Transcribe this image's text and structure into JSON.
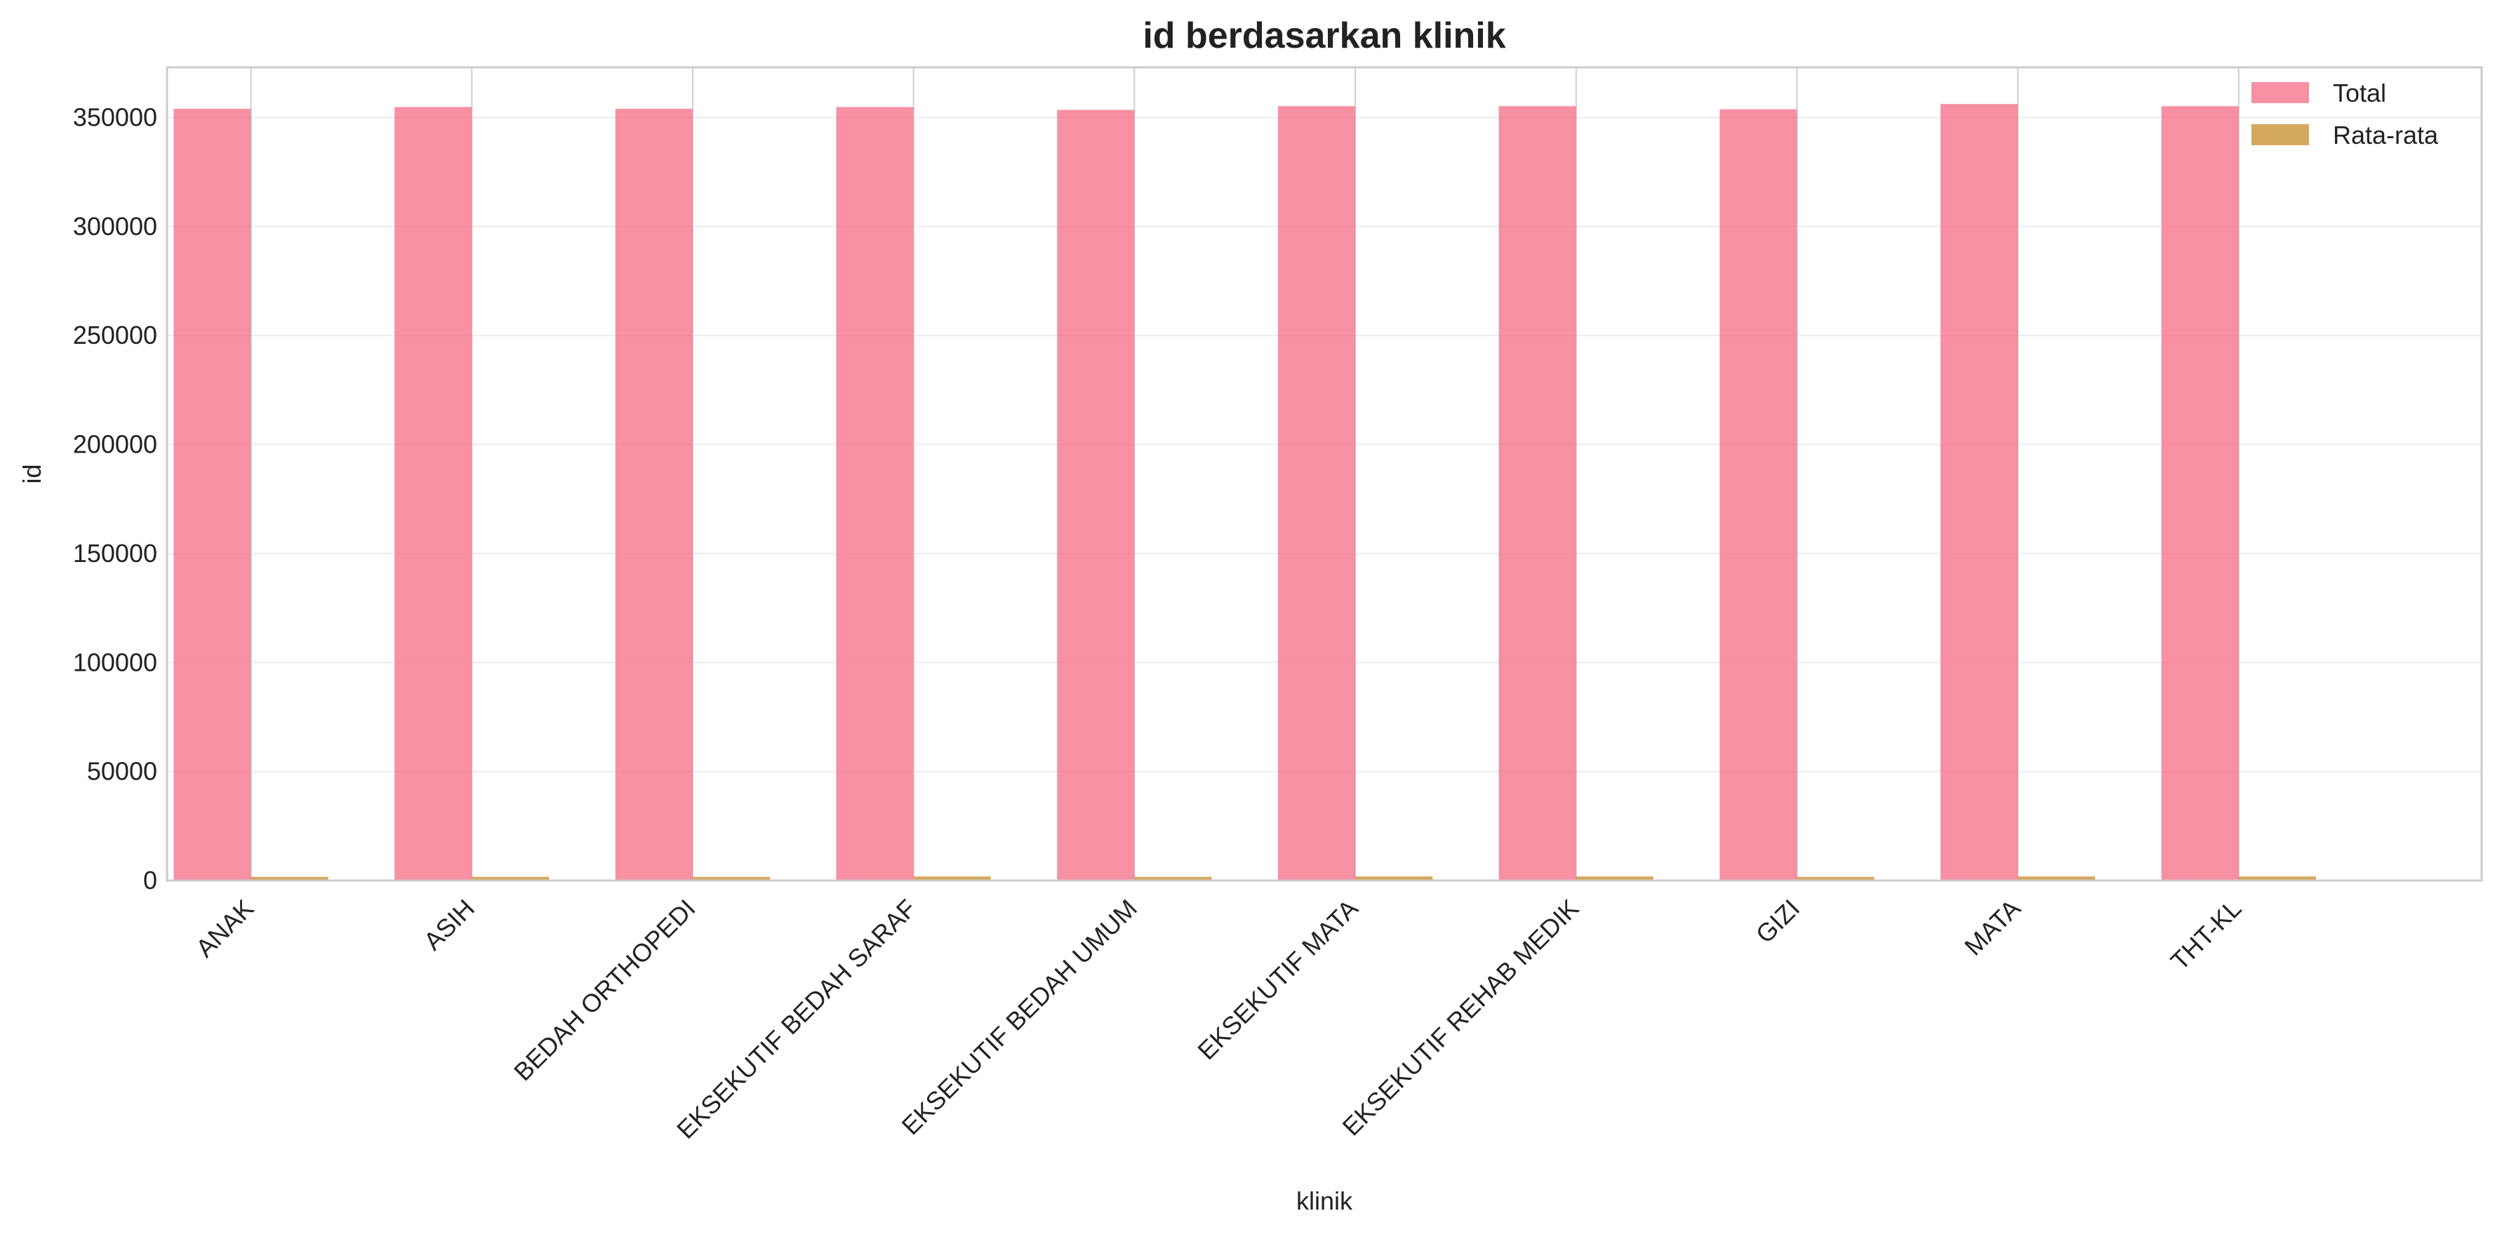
{
  "chart_data": {
    "type": "bar",
    "title": "id berdasarkan klinik",
    "xlabel": "klinik",
    "ylabel": "id",
    "categories": [
      "ANAK",
      "ASIH",
      "BEDAH ORTHOPEDI",
      "EKSEKUTIF BEDAH SARAF",
      "EKSEKUTIF BEDAH UMUM",
      "EKSEKUTIF MATA",
      "EKSEKUTIF REHAB MEDIK",
      "GIZI",
      "MATA",
      "THT-KL"
    ],
    "series": [
      {
        "name": "Total",
        "color": "#f5748c",
        "values": [
          354000,
          354800,
          354000,
          354800,
          353500,
          355200,
          355200,
          353800,
          356200,
          355200
        ]
      },
      {
        "name": "Rata-rata",
        "color": "#c99436",
        "values": [
          1700,
          1700,
          1700,
          1900,
          1700,
          1900,
          1900,
          1700,
          1900,
          1900
        ]
      }
    ],
    "ylim": [
      0,
      373000
    ],
    "yticks": [
      0,
      50000,
      100000,
      150000,
      200000,
      250000,
      300000,
      350000
    ],
    "ytick_labels": [
      "0",
      "50000",
      "100000",
      "150000",
      "200000",
      "250000",
      "300000",
      "350000"
    ],
    "grid": true,
    "legend_position": "top-right"
  }
}
